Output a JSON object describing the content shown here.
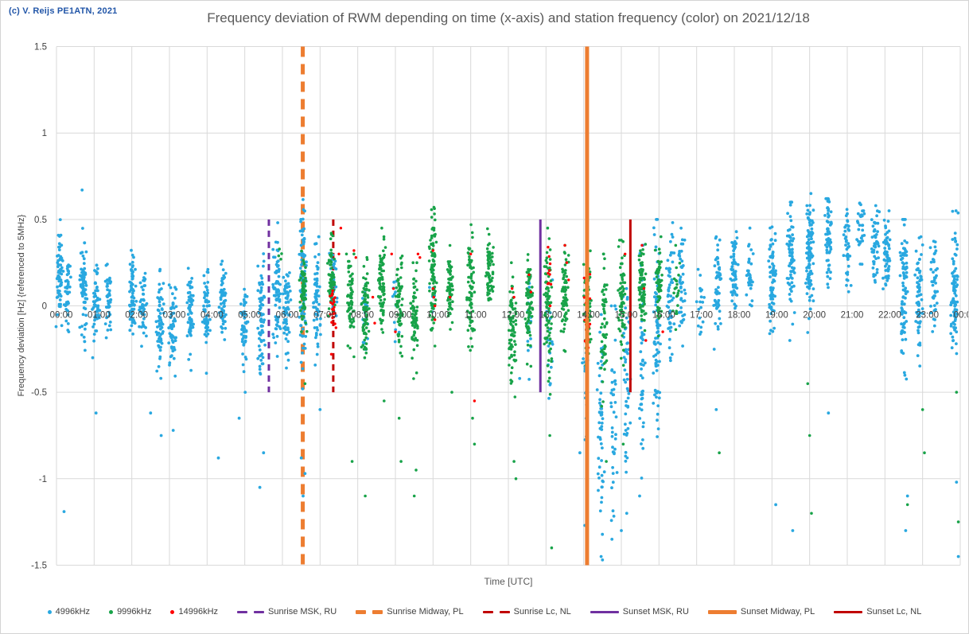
{
  "header": {
    "copyright": "(c) V. Reijs PE1ATN, 2021",
    "title": "Frequency deviation of RWM depending on time (x-axis) and station frequency (color) on 2021/12/18"
  },
  "colors": {
    "copyright": "#2256A8",
    "title": "#595959",
    "tick_text": "#404040",
    "grid": "#D9D9D9",
    "axis_title": "#595959"
  },
  "chart_data": {
    "type": "scatter",
    "title": "Frequency deviation of RWM depending on time (x-axis) and station frequency (color) on 2021/12/18",
    "xlabel": "Time [UTC]",
    "ylabel": "Frequency deviation [Hz] {referenced to 5MHz}",
    "x_unit": "hours UTC",
    "xlim_hours": [
      0,
      24
    ],
    "ylim": [
      -1.5,
      1.5
    ],
    "grid": true,
    "legend_position": "bottom",
    "x_tick_labels": [
      "00:00",
      "01:00",
      "02:00",
      "03:00",
      "04:00",
      "05:00",
      "06:00",
      "07:00",
      "08:00",
      "09:00",
      "10:00",
      "11:00",
      "12:00",
      "13:00",
      "14:00",
      "15:00",
      "16:00",
      "17:00",
      "18:00",
      "19:00",
      "20:00",
      "21:00",
      "22:00",
      "23:00",
      "00:00"
    ],
    "y_ticks": [
      [
        1.5,
        "1.5"
      ],
      [
        1,
        "1"
      ],
      [
        0.5,
        "0.5"
      ],
      [
        0,
        "0"
      ],
      [
        -0.5,
        "-0.5"
      ],
      [
        -1,
        "-1"
      ],
      [
        -1.5,
        "-1.5"
      ]
    ],
    "series_note": "clusters are [hourUTC, centerHz, sigmaHz, count, minHz, maxHz]; outliers are [hourUTC, Hz]",
    "series": [
      {
        "name": "4996kHz",
        "color": "#29A8E0",
        "clusters": [
          [
            0.08,
            0.18,
            0.13,
            60,
            -0.12,
            0.5
          ],
          [
            0.3,
            0.1,
            0.1,
            40,
            -0.15,
            0.42
          ],
          [
            0.72,
            0.12,
            0.12,
            70,
            -0.35,
            0.45
          ],
          [
            1.05,
            -0.02,
            0.1,
            55,
            -0.3,
            0.25
          ],
          [
            1.38,
            0.02,
            0.1,
            45,
            -0.25,
            0.3
          ],
          [
            2.02,
            0.08,
            0.12,
            65,
            -0.3,
            0.42
          ],
          [
            2.3,
            0.0,
            0.09,
            45,
            -0.35,
            0.3
          ],
          [
            2.75,
            -0.08,
            0.13,
            60,
            -0.6,
            0.25
          ],
          [
            3.08,
            -0.12,
            0.13,
            55,
            -0.55,
            0.2
          ],
          [
            3.55,
            -0.02,
            0.12,
            60,
            -0.45,
            0.3
          ],
          [
            3.98,
            -0.03,
            0.12,
            55,
            -0.5,
            0.28
          ],
          [
            4.42,
            0.03,
            0.11,
            60,
            -0.3,
            0.32
          ],
          [
            5.0,
            -0.1,
            0.12,
            50,
            -0.5,
            0.2
          ],
          [
            5.45,
            -0.05,
            0.18,
            70,
            -0.7,
            0.45
          ],
          [
            5.85,
            0.08,
            0.15,
            70,
            -0.45,
            0.55
          ],
          [
            6.12,
            0.0,
            0.15,
            60,
            -0.5,
            0.42
          ],
          [
            6.55,
            0.12,
            0.2,
            100,
            -0.55,
            0.67
          ],
          [
            6.92,
            0.02,
            0.16,
            65,
            -0.45,
            0.4
          ],
          [
            7.35,
            0.1,
            0.12,
            35,
            -0.3,
            0.4
          ],
          [
            8.2,
            -0.05,
            0.1,
            20,
            -0.45,
            0.2
          ],
          [
            9.0,
            0.0,
            0.1,
            12,
            -0.3,
            0.25
          ],
          [
            10.0,
            0.05,
            0.12,
            10,
            -0.2,
            0.3
          ],
          [
            12.55,
            -0.1,
            0.15,
            15,
            -0.55,
            0.2
          ],
          [
            13.1,
            -0.15,
            0.2,
            18,
            -0.6,
            0.15
          ],
          [
            14.05,
            -0.35,
            0.3,
            25,
            -1.0,
            0.05
          ],
          [
            14.45,
            -0.6,
            0.35,
            55,
            -1.45,
            -0.05
          ],
          [
            14.8,
            -0.55,
            0.35,
            40,
            -1.45,
            0.0
          ],
          [
            15.15,
            -0.45,
            0.3,
            50,
            -1.2,
            0.1
          ],
          [
            15.55,
            -0.3,
            0.35,
            55,
            -1.1,
            0.35
          ],
          [
            15.95,
            -0.15,
            0.35,
            80,
            -0.85,
            0.5
          ],
          [
            16.3,
            0.05,
            0.18,
            55,
            -0.45,
            0.5
          ],
          [
            16.6,
            0.1,
            0.15,
            45,
            -0.3,
            0.45
          ],
          [
            17.1,
            0.05,
            0.1,
            18,
            -0.2,
            0.3
          ],
          [
            17.55,
            0.1,
            0.13,
            50,
            -0.35,
            0.4
          ],
          [
            18.0,
            0.2,
            0.12,
            60,
            -0.1,
            0.48
          ],
          [
            18.4,
            0.22,
            0.1,
            35,
            0.0,
            0.45
          ],
          [
            19.0,
            0.15,
            0.15,
            70,
            -0.3,
            0.5
          ],
          [
            19.5,
            0.28,
            0.15,
            70,
            -0.2,
            0.6
          ],
          [
            20.0,
            0.3,
            0.18,
            100,
            -0.5,
            0.65
          ],
          [
            20.5,
            0.42,
            0.12,
            65,
            0.05,
            0.62
          ],
          [
            21.0,
            0.35,
            0.12,
            40,
            0.0,
            0.58
          ],
          [
            21.35,
            0.42,
            0.1,
            30,
            0.15,
            0.6
          ],
          [
            21.75,
            0.35,
            0.12,
            50,
            0.05,
            0.58
          ],
          [
            22.05,
            0.28,
            0.13,
            60,
            -0.15,
            0.55
          ],
          [
            22.5,
            0.1,
            0.2,
            85,
            -0.6,
            0.5
          ],
          [
            22.9,
            0.08,
            0.18,
            65,
            -0.75,
            0.4
          ],
          [
            23.3,
            0.1,
            0.12,
            40,
            -0.2,
            0.38
          ],
          [
            23.85,
            0.08,
            0.2,
            80,
            -0.65,
            0.55
          ]
        ],
        "outliers": [
          [
            0.2,
            -1.19
          ],
          [
            0.68,
            0.67
          ],
          [
            1.05,
            -0.62
          ],
          [
            2.5,
            -0.62
          ],
          [
            2.78,
            -0.75
          ],
          [
            3.1,
            -0.72
          ],
          [
            4.3,
            -0.88
          ],
          [
            4.85,
            -0.65
          ],
          [
            5.4,
            -1.05
          ],
          [
            5.5,
            -0.85
          ],
          [
            6.5,
            -0.88
          ],
          [
            6.55,
            -1.1
          ],
          [
            6.6,
            -0.97
          ],
          [
            7.0,
            -0.6
          ],
          [
            12.3,
            -0.42
          ],
          [
            13.9,
            -0.85
          ],
          [
            14.03,
            -1.27
          ],
          [
            14.5,
            -1.47
          ],
          [
            14.75,
            -1.35
          ],
          [
            15.0,
            -1.3
          ],
          [
            17.52,
            -0.6
          ],
          [
            19.1,
            -1.15
          ],
          [
            19.55,
            -1.3
          ],
          [
            20.5,
            -0.62
          ],
          [
            22.55,
            -1.3
          ],
          [
            22.6,
            -1.1
          ],
          [
            23.9,
            -1.02
          ],
          [
            23.95,
            -1.45
          ]
        ]
      },
      {
        "name": "9996kHz",
        "color": "#18A349",
        "clusters": [
          [
            5.95,
            0.3,
            0.05,
            4,
            0.2,
            0.38
          ],
          [
            6.55,
            0.1,
            0.1,
            55,
            -0.15,
            0.35
          ],
          [
            7.3,
            0.15,
            0.1,
            75,
            -0.2,
            0.42
          ],
          [
            7.8,
            0.05,
            0.13,
            70,
            -0.35,
            0.3
          ],
          [
            8.2,
            -0.02,
            0.13,
            75,
            -0.4,
            0.28
          ],
          [
            8.65,
            0.15,
            0.12,
            80,
            -0.25,
            0.45
          ],
          [
            9.1,
            0.02,
            0.13,
            70,
            -0.35,
            0.32
          ],
          [
            9.5,
            -0.05,
            0.15,
            75,
            -0.5,
            0.25
          ],
          [
            10.0,
            0.2,
            0.18,
            95,
            -0.3,
            0.57
          ],
          [
            10.45,
            0.1,
            0.1,
            65,
            -0.2,
            0.38
          ],
          [
            11.0,
            0.1,
            0.15,
            80,
            -0.35,
            0.47
          ],
          [
            11.5,
            0.2,
            0.12,
            65,
            -0.15,
            0.45
          ],
          [
            12.1,
            -0.15,
            0.15,
            80,
            -0.6,
            0.25
          ],
          [
            12.55,
            0.0,
            0.15,
            75,
            -0.5,
            0.32
          ],
          [
            13.05,
            0.0,
            0.18,
            85,
            -0.6,
            0.45
          ],
          [
            13.5,
            0.05,
            0.15,
            75,
            -0.45,
            0.4
          ],
          [
            14.1,
            0.0,
            0.15,
            70,
            -0.5,
            0.32
          ],
          [
            14.55,
            -0.1,
            0.2,
            55,
            -0.7,
            0.3
          ],
          [
            15.0,
            0.05,
            0.18,
            70,
            -0.55,
            0.38
          ],
          [
            15.55,
            0.12,
            0.13,
            75,
            -0.3,
            0.42
          ],
          [
            16.0,
            0.1,
            0.12,
            55,
            -0.25,
            0.4
          ],
          [
            16.45,
            0.1,
            0.1,
            22,
            -0.15,
            0.35
          ]
        ],
        "outliers": [
          [
            6.6,
            -0.45
          ],
          [
            7.85,
            -0.9
          ],
          [
            8.2,
            -1.1
          ],
          [
            8.7,
            -0.55
          ],
          [
            9.1,
            -0.65
          ],
          [
            9.15,
            -0.9
          ],
          [
            9.55,
            -0.95
          ],
          [
            9.5,
            -1.1
          ],
          [
            10.5,
            -0.5
          ],
          [
            11.05,
            -0.65
          ],
          [
            11.1,
            -0.8
          ],
          [
            12.15,
            -0.9
          ],
          [
            12.2,
            -1.0
          ],
          [
            13.1,
            -0.75
          ],
          [
            13.15,
            -1.4
          ],
          [
            14.6,
            -0.9
          ],
          [
            15.05,
            -0.8
          ],
          [
            17.6,
            -0.85
          ],
          [
            19.95,
            -0.45
          ],
          [
            20.0,
            -0.75
          ],
          [
            20.05,
            -1.2
          ],
          [
            22.6,
            -1.15
          ],
          [
            23.0,
            -0.6
          ],
          [
            23.05,
            -0.85
          ],
          [
            23.9,
            -0.5
          ],
          [
            23.95,
            -1.25
          ]
        ]
      },
      {
        "name": "14996kHz",
        "color": "#FF0000",
        "clusters": [
          [
            7.35,
            -0.02,
            0.06,
            22,
            -0.15,
            0.1
          ],
          [
            13.05,
            0.2,
            0.12,
            10,
            0.0,
            0.38
          ],
          [
            14.1,
            -0.05,
            0.15,
            30,
            -0.35,
            0.25
          ]
        ],
        "outliers": [
          [
            7.3,
            -0.28
          ],
          [
            7.5,
            0.3
          ],
          [
            7.55,
            0.45
          ],
          [
            7.9,
            0.32
          ],
          [
            7.95,
            0.28
          ],
          [
            8.4,
            0.05
          ],
          [
            8.45,
            -0.1
          ],
          [
            8.9,
            0.3
          ],
          [
            8.95,
            0.1
          ],
          [
            9.0,
            -0.15
          ],
          [
            9.6,
            0.3
          ],
          [
            9.65,
            0.28
          ],
          [
            10.0,
            0.32
          ],
          [
            10.0,
            0.1
          ],
          [
            10.02,
            0.05
          ],
          [
            10.05,
            0.0
          ],
          [
            10.05,
            -0.08
          ],
          [
            10.45,
            0.05
          ],
          [
            11.0,
            0.3
          ],
          [
            11.1,
            -0.55
          ],
          [
            12.1,
            0.1
          ],
          [
            12.15,
            0.05
          ],
          [
            12.55,
            0.18
          ],
          [
            12.6,
            0.08
          ],
          [
            13.5,
            0.35
          ],
          [
            13.55,
            0.25
          ],
          [
            13.6,
            0.15
          ],
          [
            15.1,
            0.3
          ],
          [
            15.55,
            0.35
          ],
          [
            15.6,
            0.1
          ],
          [
            15.65,
            -0.2
          ],
          [
            16.1,
            -0.15
          ]
        ]
      }
    ],
    "event_lines": [
      {
        "name": "Sunrise MSK, RU",
        "t": 5.64,
        "color": "#7030A0",
        "style": "dashed",
        "width": 3,
        "y_from": 0.5,
        "y_to": -0.5
      },
      {
        "name": "Sunrise Midway, PL",
        "t": 6.54,
        "color": "#ED7D31",
        "style": "dashed",
        "width": 5,
        "y_from": 1.5,
        "y_to": -1.5
      },
      {
        "name": "Sunrise Lc, NL",
        "t": 7.35,
        "color": "#C00000",
        "style": "dashed",
        "width": 3,
        "y_from": 0.5,
        "y_to": -0.5
      },
      {
        "name": "Sunset MSK, RU",
        "t": 12.85,
        "color": "#7030A0",
        "style": "solid",
        "width": 3,
        "y_from": 0.5,
        "y_to": -0.5
      },
      {
        "name": "Sunset Midway, PL",
        "t": 14.09,
        "color": "#ED7D31",
        "style": "solid",
        "width": 5,
        "y_from": 1.5,
        "y_to": -1.5
      },
      {
        "name": "Sunset Lc, NL",
        "t": 15.24,
        "color": "#C00000",
        "style": "solid",
        "width": 3,
        "y_from": 0.5,
        "y_to": -0.5
      }
    ]
  }
}
